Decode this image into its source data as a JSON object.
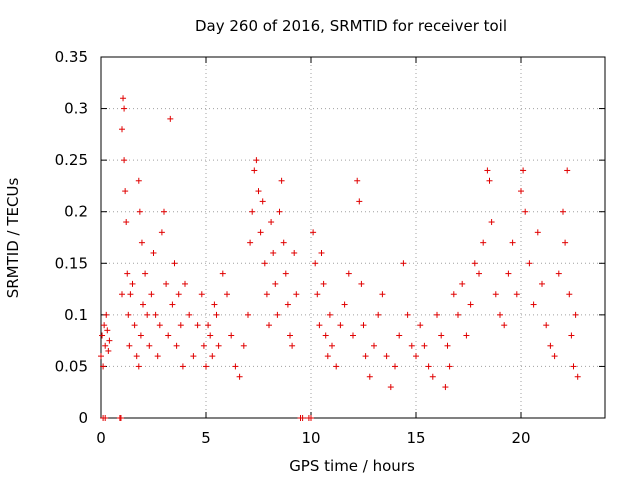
{
  "chart_data": {
    "type": "scatter",
    "title": "Day 260 of 2016, SRMTID for receiver toil",
    "xlabel": "GPS time / hours",
    "ylabel": "SRMTID / TECUs",
    "xlim": [
      0,
      24
    ],
    "ylim": [
      0,
      0.35
    ],
    "xticks": [
      0,
      5,
      10,
      15,
      20
    ],
    "xtick_labels": [
      "0",
      "5",
      "10",
      "15",
      "20"
    ],
    "yticks": [
      0,
      0.05,
      0.1,
      0.15,
      0.2,
      0.25,
      0.3,
      0.35
    ],
    "ytick_labels": [
      "0",
      "0.05",
      "0.1",
      "0.15",
      "0.2",
      "0.25",
      "0.3",
      "0.35"
    ],
    "grid": true,
    "marker": "+",
    "color": "#e00000",
    "series": [
      {
        "name": "SRMTID",
        "points": [
          [
            0.0,
            0.06
          ],
          [
            0.05,
            0.08
          ],
          [
            0.1,
            0.05
          ],
          [
            0.15,
            0.09
          ],
          [
            0.2,
            0.07
          ],
          [
            0.25,
            0.1
          ],
          [
            0.3,
            0.085
          ],
          [
            0.35,
            0.065
          ],
          [
            0.4,
            0.075
          ],
          [
            0.1,
            0.0
          ],
          [
            0.2,
            0.0
          ],
          [
            0.9,
            0.0
          ],
          [
            0.95,
            0.0
          ],
          [
            1.0,
            0.12
          ],
          [
            1.05,
            0.31
          ],
          [
            1.1,
            0.3
          ],
          [
            1.0,
            0.28
          ],
          [
            1.1,
            0.25
          ],
          [
            1.15,
            0.22
          ],
          [
            1.2,
            0.19
          ],
          [
            1.25,
            0.14
          ],
          [
            1.3,
            0.1
          ],
          [
            1.35,
            0.07
          ],
          [
            1.4,
            0.12
          ],
          [
            1.5,
            0.13
          ],
          [
            1.6,
            0.09
          ],
          [
            1.7,
            0.06
          ],
          [
            1.8,
            0.05
          ],
          [
            1.9,
            0.08
          ],
          [
            2.0,
            0.11
          ],
          [
            1.8,
            0.23
          ],
          [
            1.85,
            0.2
          ],
          [
            1.95,
            0.17
          ],
          [
            2.1,
            0.14
          ],
          [
            2.2,
            0.1
          ],
          [
            2.3,
            0.07
          ],
          [
            2.4,
            0.12
          ],
          [
            2.5,
            0.16
          ],
          [
            2.6,
            0.1
          ],
          [
            2.7,
            0.06
          ],
          [
            2.8,
            0.09
          ],
          [
            2.9,
            0.18
          ],
          [
            3.0,
            0.2
          ],
          [
            3.1,
            0.13
          ],
          [
            3.2,
            0.08
          ],
          [
            3.3,
            0.29
          ],
          [
            3.4,
            0.11
          ],
          [
            3.5,
            0.15
          ],
          [
            3.6,
            0.07
          ],
          [
            3.7,
            0.12
          ],
          [
            3.8,
            0.09
          ],
          [
            3.9,
            0.05
          ],
          [
            4.0,
            0.13
          ],
          [
            4.2,
            0.1
          ],
          [
            4.4,
            0.06
          ],
          [
            4.6,
            0.09
          ],
          [
            4.8,
            0.12
          ],
          [
            4.9,
            0.07
          ],
          [
            5.0,
            0.05
          ],
          [
            5.1,
            0.09
          ],
          [
            5.2,
            0.08
          ],
          [
            5.3,
            0.06
          ],
          [
            5.4,
            0.11
          ],
          [
            5.5,
            0.1
          ],
          [
            5.6,
            0.07
          ],
          [
            5.8,
            0.14
          ],
          [
            6.0,
            0.12
          ],
          [
            6.2,
            0.08
          ],
          [
            6.4,
            0.05
          ],
          [
            6.6,
            0.04
          ],
          [
            6.8,
            0.07
          ],
          [
            7.0,
            0.1
          ],
          [
            7.1,
            0.17
          ],
          [
            7.2,
            0.2
          ],
          [
            7.3,
            0.24
          ],
          [
            7.4,
            0.25
          ],
          [
            7.5,
            0.22
          ],
          [
            7.6,
            0.18
          ],
          [
            7.7,
            0.21
          ],
          [
            7.8,
            0.15
          ],
          [
            7.9,
            0.12
          ],
          [
            8.0,
            0.09
          ],
          [
            8.1,
            0.19
          ],
          [
            8.2,
            0.16
          ],
          [
            8.3,
            0.13
          ],
          [
            8.4,
            0.1
          ],
          [
            8.5,
            0.2
          ],
          [
            8.6,
            0.23
          ],
          [
            8.7,
            0.17
          ],
          [
            8.8,
            0.14
          ],
          [
            8.9,
            0.11
          ],
          [
            9.0,
            0.08
          ],
          [
            9.1,
            0.07
          ],
          [
            9.2,
            0.16
          ],
          [
            9.3,
            0.12
          ],
          [
            9.5,
            0.0
          ],
          [
            9.6,
            0.0
          ],
          [
            9.9,
            0.0
          ],
          [
            10.0,
            0.0
          ],
          [
            10.1,
            0.18
          ],
          [
            10.2,
            0.15
          ],
          [
            10.3,
            0.12
          ],
          [
            10.4,
            0.09
          ],
          [
            10.5,
            0.16
          ],
          [
            10.6,
            0.13
          ],
          [
            10.7,
            0.08
          ],
          [
            10.8,
            0.06
          ],
          [
            10.9,
            0.1
          ],
          [
            11.0,
            0.07
          ],
          [
            11.2,
            0.05
          ],
          [
            11.4,
            0.09
          ],
          [
            11.6,
            0.11
          ],
          [
            11.8,
            0.14
          ],
          [
            12.0,
            0.08
          ],
          [
            12.2,
            0.23
          ],
          [
            12.3,
            0.21
          ],
          [
            12.4,
            0.13
          ],
          [
            12.5,
            0.09
          ],
          [
            12.6,
            0.06
          ],
          [
            12.8,
            0.04
          ],
          [
            13.0,
            0.07
          ],
          [
            13.2,
            0.1
          ],
          [
            13.4,
            0.12
          ],
          [
            13.6,
            0.06
          ],
          [
            13.8,
            0.03
          ],
          [
            14.0,
            0.05
          ],
          [
            14.2,
            0.08
          ],
          [
            14.4,
            0.15
          ],
          [
            14.6,
            0.1
          ],
          [
            14.8,
            0.07
          ],
          [
            15.0,
            0.06
          ],
          [
            15.2,
            0.09
          ],
          [
            15.4,
            0.07
          ],
          [
            15.6,
            0.05
          ],
          [
            15.8,
            0.04
          ],
          [
            16.0,
            0.1
          ],
          [
            16.2,
            0.08
          ],
          [
            16.4,
            0.03
          ],
          [
            16.5,
            0.07
          ],
          [
            16.6,
            0.05
          ],
          [
            16.8,
            0.12
          ],
          [
            17.0,
            0.1
          ],
          [
            17.2,
            0.13
          ],
          [
            17.4,
            0.08
          ],
          [
            17.6,
            0.11
          ],
          [
            17.8,
            0.15
          ],
          [
            18.0,
            0.14
          ],
          [
            18.2,
            0.17
          ],
          [
            18.4,
            0.24
          ],
          [
            18.5,
            0.23
          ],
          [
            18.6,
            0.19
          ],
          [
            18.8,
            0.12
          ],
          [
            19.0,
            0.1
          ],
          [
            19.2,
            0.09
          ],
          [
            19.4,
            0.14
          ],
          [
            19.6,
            0.17
          ],
          [
            19.8,
            0.12
          ],
          [
            20.0,
            0.22
          ],
          [
            20.1,
            0.24
          ],
          [
            20.2,
            0.2
          ],
          [
            20.4,
            0.15
          ],
          [
            20.6,
            0.11
          ],
          [
            20.8,
            0.18
          ],
          [
            21.0,
            0.13
          ],
          [
            21.2,
            0.09
          ],
          [
            21.4,
            0.07
          ],
          [
            21.6,
            0.06
          ],
          [
            21.8,
            0.14
          ],
          [
            22.0,
            0.2
          ],
          [
            22.1,
            0.17
          ],
          [
            22.2,
            0.24
          ],
          [
            22.3,
            0.12
          ],
          [
            22.4,
            0.08
          ],
          [
            22.5,
            0.05
          ],
          [
            22.6,
            0.1
          ],
          [
            22.7,
            0.04
          ]
        ]
      }
    ]
  }
}
